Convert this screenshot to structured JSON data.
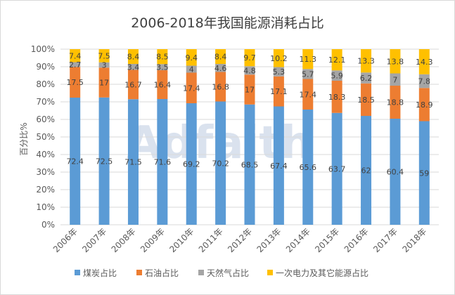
{
  "chart_data": {
    "type": "bar",
    "stacked": "percent",
    "title": "2006-2018年我国能源消耗占比",
    "ylabel": "百分比%",
    "xlabel": "",
    "categories": [
      "2006年",
      "2007年",
      "2008年",
      "2009年",
      "2010年",
      "2011年",
      "2012年",
      "2013年",
      "2014年",
      "2015年",
      "2016年",
      "2017年",
      "2018年"
    ],
    "ylim": [
      0,
      100
    ],
    "yticks": [
      "0%",
      "10%",
      "20%",
      "30%",
      "40%",
      "50%",
      "60%",
      "70%",
      "80%",
      "90%",
      "100%"
    ],
    "grid": true,
    "legend_position": "bottom",
    "series": [
      {
        "name": "煤炭占比",
        "color": "#5B9BD5",
        "values": [
          72.4,
          72.5,
          71.5,
          71.6,
          69.2,
          70.2,
          68.5,
          67.4,
          65.6,
          63.7,
          62,
          60.4,
          59
        ]
      },
      {
        "name": "石油占比",
        "color": "#ED7D31",
        "values": [
          17.5,
          17,
          16.7,
          16.4,
          17.4,
          16.8,
          17,
          17.1,
          17.4,
          18.3,
          18.5,
          18.8,
          18.9
        ]
      },
      {
        "name": "天然气占比",
        "color": "#A5A5A5",
        "values": [
          2.7,
          3,
          3.4,
          3.5,
          4,
          4.6,
          4.8,
          5.3,
          5.7,
          5.9,
          6.2,
          7,
          7.8
        ]
      },
      {
        "name": "一次电力及其它能源占比",
        "color": "#FFC000",
        "values": [
          7.4,
          7.5,
          8.4,
          8.5,
          9.4,
          8.4,
          9.7,
          10.2,
          11.3,
          12.1,
          13.3,
          13.8,
          14.3
        ]
      }
    ]
  },
  "watermark_text": "Adfaith"
}
